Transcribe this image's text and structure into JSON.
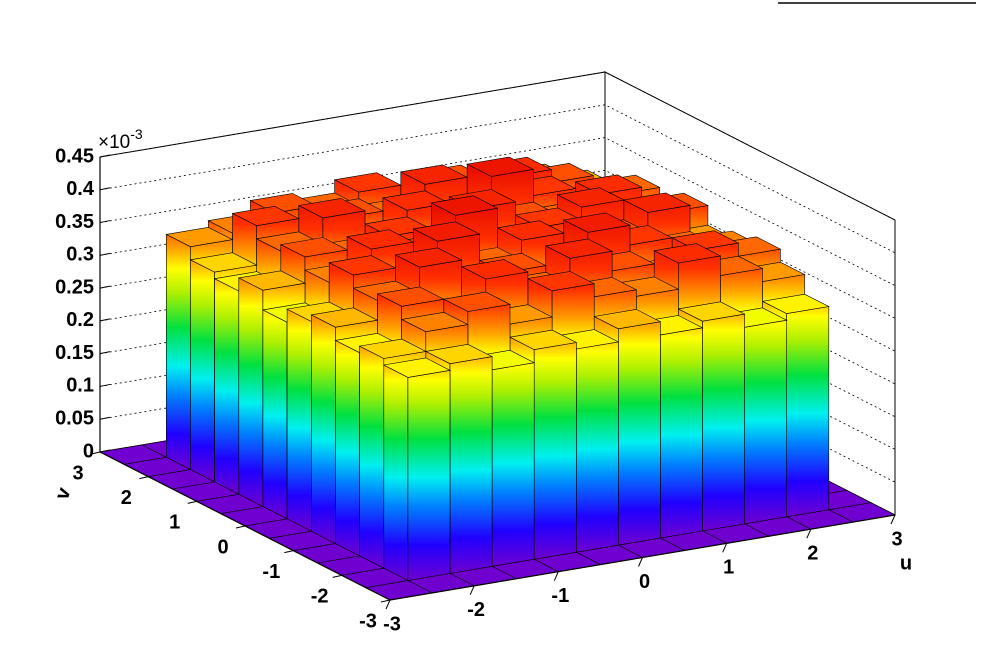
{
  "chart_data": {
    "type": "lego",
    "x_label": "u",
    "y_label": "v",
    "z_multiplier": {
      "base": "×10",
      "exponent": "-3"
    },
    "xlim": [
      -3,
      3
    ],
    "ylim": [
      -3,
      3
    ],
    "zlim": [
      0,
      0.45
    ],
    "xticks": [
      -3,
      -2,
      -1,
      0,
      1,
      2,
      3
    ],
    "yticks": [
      -3,
      -2,
      -1,
      0,
      1,
      2,
      3
    ],
    "zticks": [
      0,
      0.05,
      0.1,
      0.15,
      0.2,
      0.25,
      0.3,
      0.35,
      0.4,
      0.45
    ],
    "x_bins": [
      -3,
      -2.5,
      -2,
      -1.5,
      -1,
      -0.5,
      0,
      0.5,
      1,
      1.5,
      2,
      2.5,
      3
    ],
    "y_bins": [
      -3,
      -2.5,
      -2,
      -1.5,
      -1,
      -0.5,
      0,
      0.5,
      1,
      1.5,
      2,
      2.5,
      3
    ],
    "grid": true,
    "z": [
      [
        0,
        0,
        0,
        0,
        0,
        0,
        0,
        0,
        0,
        0,
        0,
        0
      ],
      [
        0,
        0.31,
        0.32,
        0.3,
        0.32,
        0.31,
        0.33,
        0.31,
        0.32,
        0.3,
        0.31,
        0
      ],
      [
        0,
        0.32,
        0.35,
        0.37,
        0.34,
        0.38,
        0.36,
        0.35,
        0.39,
        0.36,
        0.34,
        0
      ],
      [
        0,
        0.31,
        0.37,
        0.34,
        0.39,
        0.36,
        0.4,
        0.37,
        0.35,
        0.38,
        0.36,
        0
      ],
      [
        0,
        0.33,
        0.36,
        0.4,
        0.35,
        0.37,
        0.34,
        0.41,
        0.38,
        0.36,
        0.35,
        0
      ],
      [
        0,
        0.32,
        0.38,
        0.35,
        0.41,
        0.36,
        0.39,
        0.36,
        0.37,
        0.4,
        0.34,
        0
      ],
      [
        0,
        0.3,
        0.35,
        0.39,
        0.37,
        0.42,
        0.35,
        0.38,
        0.4,
        0.36,
        0.37,
        0
      ],
      [
        0,
        0.33,
        0.37,
        0.36,
        0.38,
        0.35,
        0.4,
        0.37,
        0.36,
        0.39,
        0.35,
        0
      ],
      [
        0,
        0.31,
        0.36,
        0.4,
        0.35,
        0.39,
        0.37,
        0.42,
        0.38,
        0.35,
        0.36,
        0
      ],
      [
        0,
        0.32,
        0.38,
        0.35,
        0.37,
        0.36,
        0.4,
        0.36,
        0.39,
        0.37,
        0.34,
        0
      ],
      [
        0,
        0.34,
        0.35,
        0.37,
        0.36,
        0.38,
        0.35,
        0.37,
        0.36,
        0.35,
        0.33,
        0
      ],
      [
        0,
        0,
        0,
        0,
        0,
        0,
        0,
        0,
        0,
        0,
        0,
        0
      ]
    ]
  }
}
